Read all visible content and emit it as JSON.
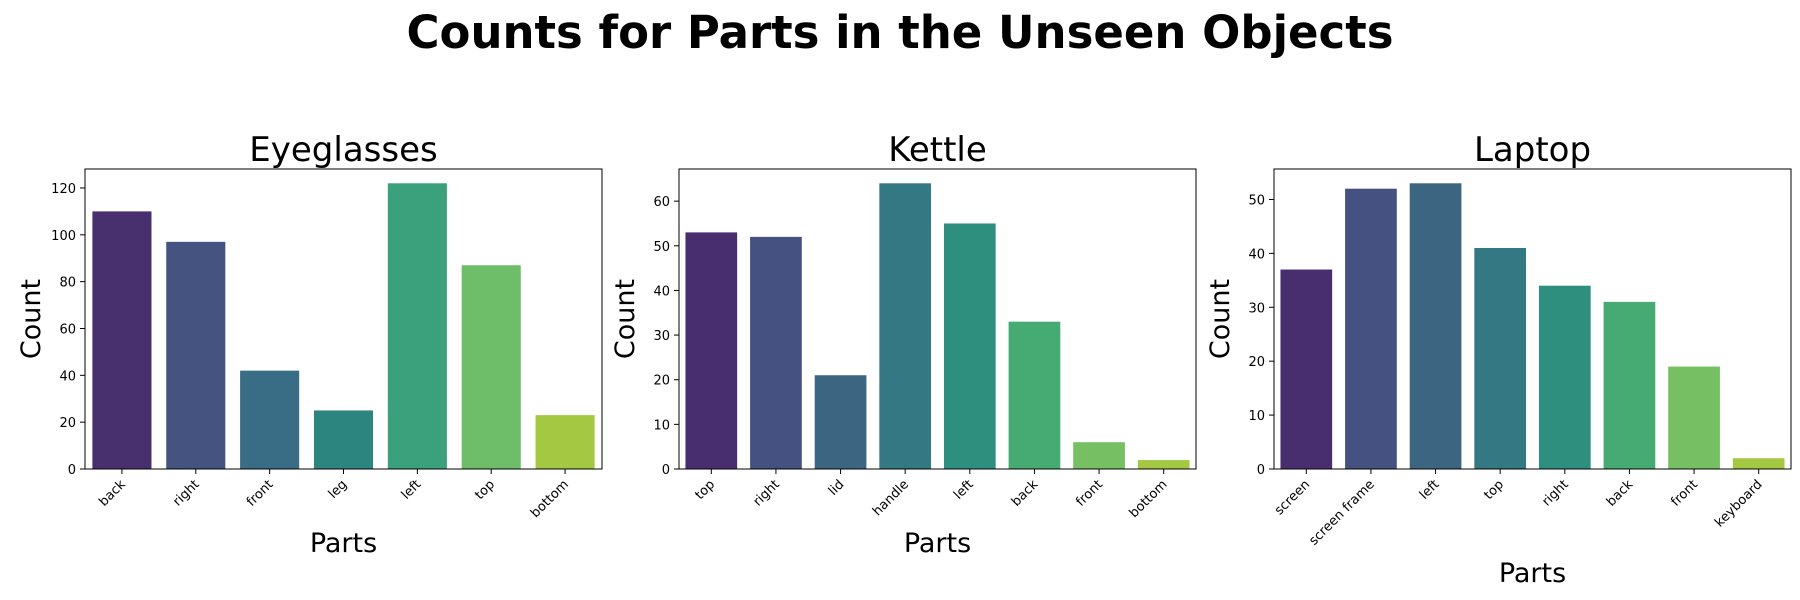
{
  "figure": {
    "title": "Counts for Parts in the Unseen Objects"
  },
  "chart_data": [
    {
      "type": "bar",
      "title": "Eyeglasses",
      "xlabel": "Parts",
      "ylabel": "Count",
      "categories": [
        "back",
        "right",
        "front",
        "leg",
        "left",
        "top",
        "bottom"
      ],
      "values": [
        110,
        97,
        42,
        25,
        122,
        87,
        23
      ],
      "ylim": [
        0,
        128.1
      ],
      "yticks": [
        0,
        20,
        40,
        60,
        80,
        100,
        120
      ],
      "colors": [
        "#48306e",
        "#445380",
        "#396d86",
        "#2d8580",
        "#3ba07c",
        "#6dbd69",
        "#a4c842"
      ]
    },
    {
      "type": "bar",
      "title": "Kettle",
      "xlabel": "Parts",
      "ylabel": "Count",
      "categories": [
        "top",
        "right",
        "lid",
        "handle",
        "left",
        "back",
        "front",
        "bottom"
      ],
      "values": [
        53,
        52,
        21,
        64,
        55,
        33,
        6,
        2
      ],
      "ylim": [
        0,
        67.2
      ],
      "yticks": [
        0,
        10,
        20,
        30,
        40,
        50,
        60
      ],
      "colors": [
        "#482e6e",
        "#455180",
        "#3c6581",
        "#337882",
        "#2f8f7f",
        "#46aa73",
        "#76bf62",
        "#a4c842"
      ]
    },
    {
      "type": "bar",
      "title": "Laptop",
      "xlabel": "Parts",
      "ylabel": "Count",
      "categories": [
        "screen",
        "screen frame",
        "left",
        "top",
        "right",
        "back",
        "front",
        "keyboard"
      ],
      "values": [
        37,
        52,
        53,
        41,
        34,
        31,
        19,
        2
      ],
      "ylim": [
        0,
        55.65
      ],
      "yticks": [
        0,
        10,
        20,
        30,
        40,
        50
      ],
      "colors": [
        "#482e6e",
        "#455180",
        "#3c6581",
        "#337882",
        "#2f8f7f",
        "#46aa73",
        "#76bf62",
        "#a4c842"
      ]
    }
  ]
}
